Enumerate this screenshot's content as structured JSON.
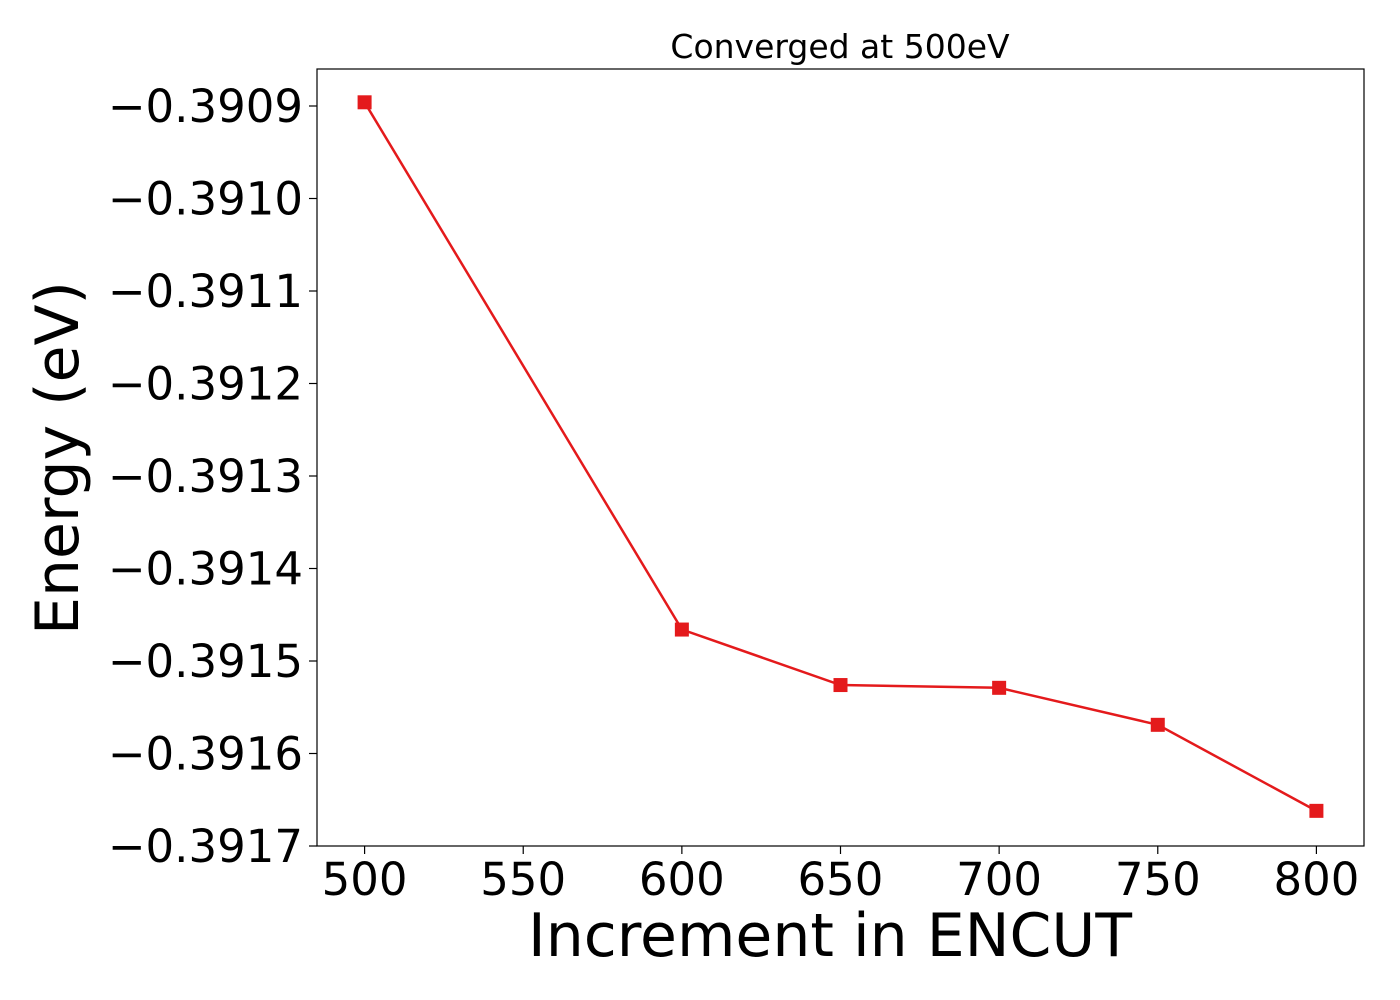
{
  "chart_data": {
    "type": "line",
    "title": "Converged at 500eV",
    "xlabel": "Increment in ENCUT",
    "ylabel": "Energy (eV)",
    "xlim": [
      485,
      815
    ],
    "ylim": [
      -0.3917,
      -0.39086
    ],
    "x_ticks": [
      500,
      550,
      600,
      650,
      700,
      750,
      800
    ],
    "x_tick_labels": [
      "500",
      "550",
      "600",
      "650",
      "700",
      "750",
      "800"
    ],
    "y_ticks": [
      -0.3909,
      -0.391,
      -0.3911,
      -0.3912,
      -0.3913,
      -0.3914,
      -0.3915,
      -0.3916,
      -0.3917
    ],
    "y_tick_labels": [
      "−0.3909",
      "−0.3910",
      "−0.3911",
      "−0.3912",
      "−0.3913",
      "−0.3914",
      "−0.3915",
      "−0.3916",
      "−0.3917"
    ],
    "grid": false,
    "series": [
      {
        "color": "#e41a1c",
        "marker": "square",
        "x": [
          500,
          600,
          650,
          700,
          750,
          800
        ],
        "y": [
          -0.390896,
          -0.391466,
          -0.391526,
          -0.391529,
          -0.391569,
          -0.391662
        ]
      }
    ]
  }
}
